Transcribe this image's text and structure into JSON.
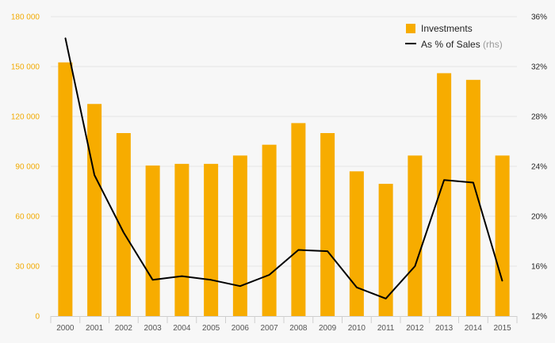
{
  "chart_data": {
    "type": "bar",
    "categories": [
      "2000",
      "2001",
      "2002",
      "2003",
      "2004",
      "2005",
      "2006",
      "2007",
      "2008",
      "2009",
      "2010",
      "2011",
      "2012",
      "2013",
      "2014",
      "2015"
    ],
    "series": [
      {
        "name": "Investments",
        "type": "bar",
        "axis": "left",
        "color": "#f7ac00",
        "values": [
          152500,
          127500,
          110000,
          90500,
          91500,
          91500,
          96500,
          103000,
          116000,
          110000,
          87000,
          79500,
          96500,
          146000,
          142000,
          96500
        ]
      },
      {
        "name": "As % of Sales",
        "legend_note": "(rhs)",
        "type": "line",
        "axis": "right",
        "color": "#000000",
        "values": [
          34.3,
          23.3,
          18.7,
          14.9,
          15.2,
          14.9,
          14.4,
          15.3,
          17.3,
          17.2,
          14.3,
          13.4,
          16.0,
          22.9,
          22.7,
          14.8
        ]
      }
    ],
    "y_left": {
      "lim": [
        0,
        180000
      ],
      "ticks": [
        0,
        30000,
        60000,
        90000,
        120000,
        150000,
        180000
      ],
      "tick_labels": [
        "0",
        "30 000",
        "60 000",
        "90 000",
        "120 000",
        "150 000",
        "180 000"
      ],
      "label_color": "#f2aa00"
    },
    "y_right": {
      "lim": [
        12,
        36
      ],
      "ticks": [
        12,
        16,
        20,
        24,
        28,
        32,
        36
      ],
      "tick_labels": [
        "12%",
        "16%",
        "20%",
        "24%",
        "28%",
        "32%",
        "36%"
      ],
      "label_color": "#222222"
    },
    "title": "",
    "xlabel": "",
    "ylabel": "",
    "grid": true,
    "legend_position": "top-right"
  }
}
